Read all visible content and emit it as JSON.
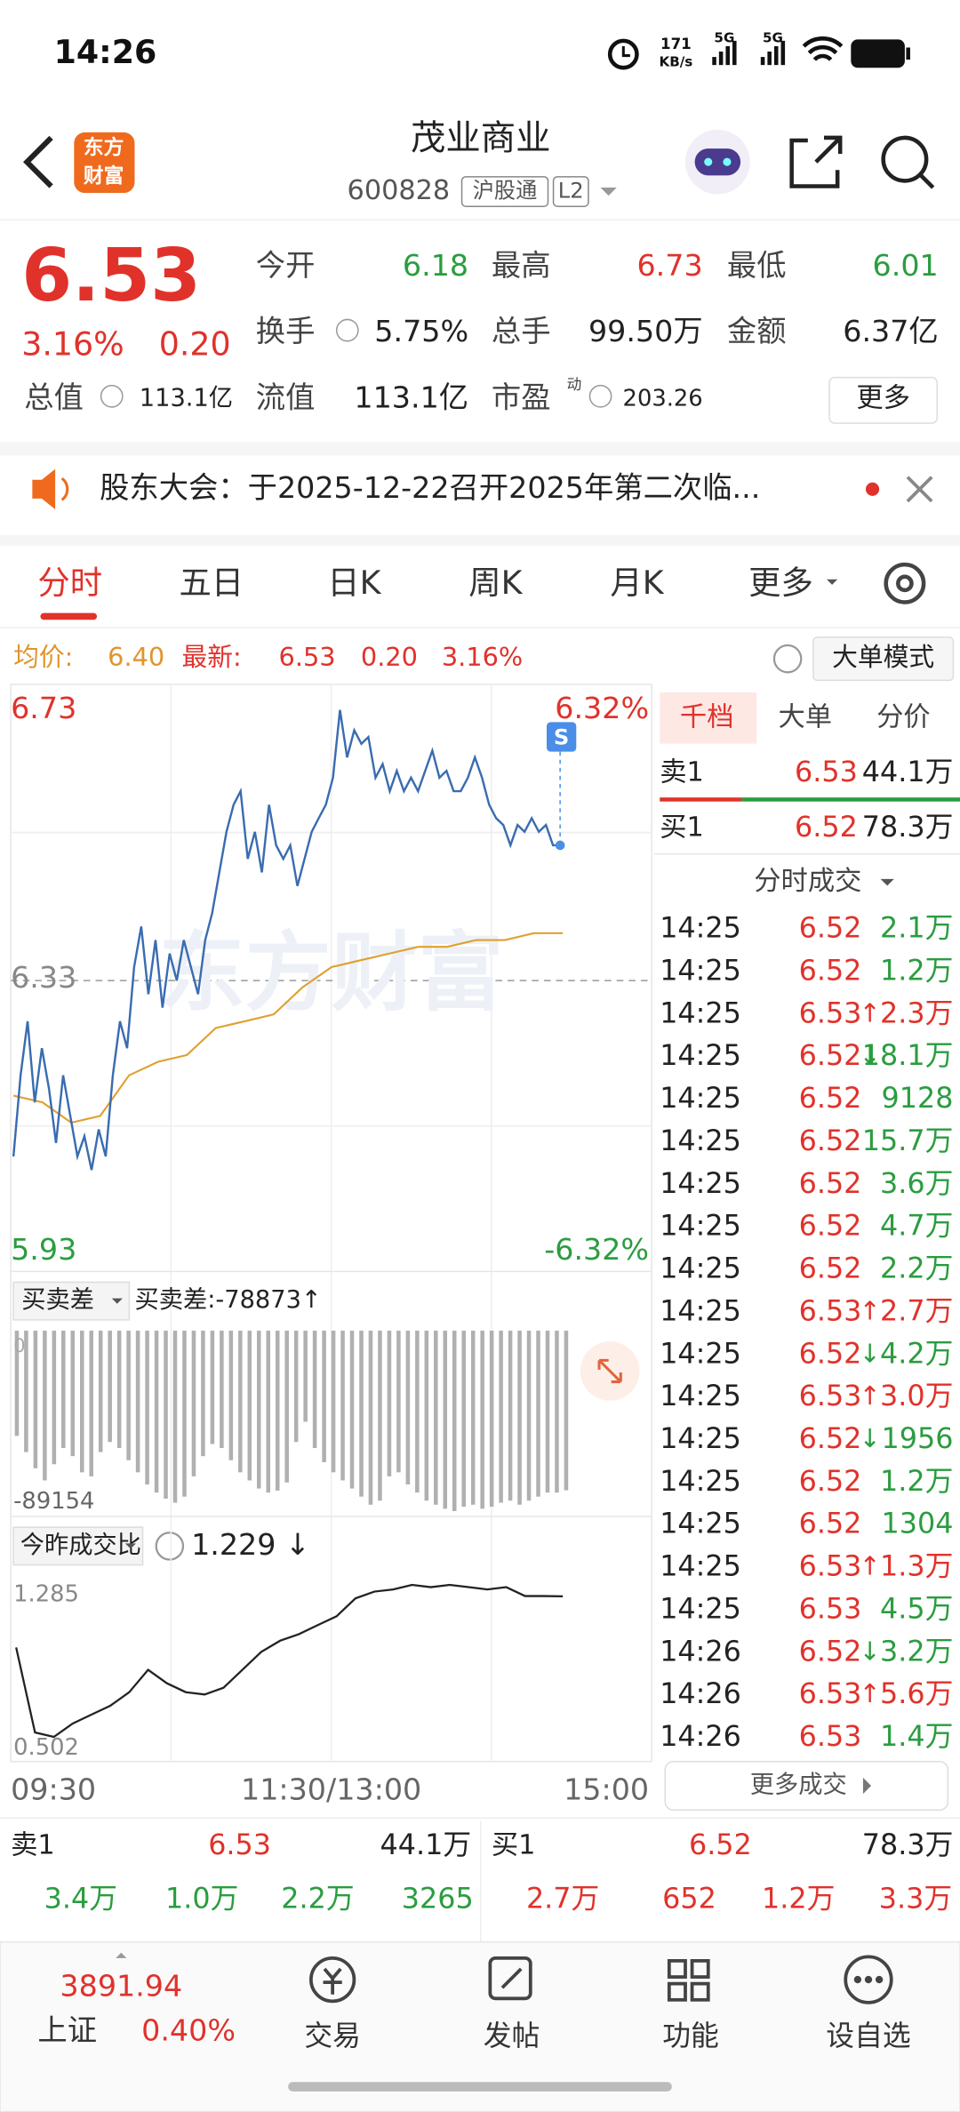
{
  "status_bar": {
    "time": "14:26",
    "speed": "171",
    "speed_unit": "KB/s",
    "net1": "5G",
    "net2": "5G"
  },
  "header": {
    "logo_top": "东方",
    "logo_bottom": "财富",
    "name": "茂业商业",
    "code": "600828",
    "tag1": "沪股通",
    "tag2": "L2"
  },
  "quote": {
    "price": "6.53",
    "change_pct": "3.16%",
    "change": "0.20",
    "row1": [
      {
        "label": "今开",
        "value": "6.18"
      },
      {
        "label": "最高",
        "value": "6.73"
      },
      {
        "label": "最低",
        "value": "6.01"
      }
    ],
    "row2": [
      {
        "label": "换手",
        "value": "5.75%"
      },
      {
        "label": "总手",
        "value": "99.50万"
      },
      {
        "label": "金额",
        "value": "6.37亿"
      }
    ],
    "row3": [
      {
        "label": "总值",
        "value": "113.1亿"
      },
      {
        "label": "流值",
        "value": "113.1亿"
      },
      {
        "label": "市盈",
        "value": "203.26"
      }
    ],
    "pe_sup": "动",
    "more": "更多"
  },
  "notice": {
    "text": "股东大会：于2025-12-22召开2025年第二次临..."
  },
  "tabs": [
    "分时",
    "五日",
    "日K",
    "周K",
    "月K",
    "更多"
  ],
  "summary": {
    "avg_label": "均价:",
    "avg": "6.40",
    "latest_label": "最新:",
    "latest": "6.53",
    "change": "0.20",
    "pct": "3.16%",
    "mode": "大单模式"
  },
  "price_chart": {
    "y_top": "6.73",
    "y_mid": "6.33",
    "y_bottom": "5.93",
    "pct_top": "6.32%",
    "pct_bottom": "-6.32%",
    "watermark": "东方财富",
    "marker": "S",
    "ylim": [
      5.93,
      6.73
    ],
    "price": [
      6.07,
      6.19,
      6.27,
      6.15,
      6.23,
      6.17,
      6.09,
      6.19,
      6.13,
      6.07,
      6.1,
      6.05,
      6.11,
      6.07,
      6.19,
      6.27,
      6.23,
      6.35,
      6.41,
      6.31,
      6.39,
      6.29,
      6.37,
      6.33,
      6.39,
      6.35,
      6.31,
      6.39,
      6.43,
      6.49,
      6.55,
      6.59,
      6.61,
      6.51,
      6.55,
      6.49,
      6.59,
      6.53,
      6.51,
      6.53,
      6.47,
      6.51,
      6.55,
      6.57,
      6.59,
      6.63,
      6.73,
      6.66,
      6.7,
      6.68,
      6.69,
      6.63,
      6.65,
      6.61,
      6.64,
      6.61,
      6.63,
      6.61,
      6.64,
      6.67,
      6.63,
      6.64,
      6.61,
      6.61,
      6.63,
      6.66,
      6.63,
      6.59,
      6.57,
      6.56,
      6.53,
      6.56,
      6.55,
      6.57,
      6.55,
      6.56,
      6.53,
      6.53
    ],
    "avg": [
      6.16,
      6.15,
      6.12,
      6.13,
      6.19,
      6.21,
      6.22,
      6.26,
      6.27,
      6.28,
      6.32,
      6.35,
      6.36,
      6.37,
      6.38,
      6.38,
      6.39,
      6.39,
      6.4,
      6.4
    ]
  },
  "diff_chart": {
    "selector": "买卖差",
    "label": "买卖差:-78873↑",
    "top": "0",
    "bottom": "-89154",
    "ylim": [
      -89154,
      0
    ],
    "values": [
      -52000,
      -60000,
      -68000,
      -74000,
      -66000,
      -58000,
      -62000,
      -70000,
      -72000,
      -60000,
      -55000,
      -58000,
      -64000,
      -70000,
      -76000,
      -80000,
      -83000,
      -85000,
      -82000,
      -72000,
      -62000,
      -56000,
      -58000,
      -64000,
      -70000,
      -74000,
      -78000,
      -80000,
      -79000,
      -75000,
      -55000,
      -45000,
      -58000,
      -65000,
      -70000,
      -74000,
      -78000,
      -82000,
      -86000,
      -84000,
      -72000,
      -70000,
      -76000,
      -80000,
      -84000,
      -86000,
      -88000,
      -89154,
      -87000,
      -86000,
      -88000,
      -87000,
      -85000,
      -84000,
      -86000,
      -84000,
      -82000,
      -80000,
      -80000,
      -78873
    ]
  },
  "ratio_chart": {
    "selector": "今昨成交比",
    "value": "1.229 ↓",
    "top": "1.285",
    "bottom": "0.502",
    "ylim": [
      0.502,
      1.285
    ],
    "values": [
      1.0,
      0.62,
      0.6,
      0.66,
      0.7,
      0.74,
      0.8,
      0.9,
      0.84,
      0.8,
      0.79,
      0.82,
      0.9,
      0.98,
      1.03,
      1.06,
      1.1,
      1.14,
      1.22,
      1.25,
      1.26,
      1.28,
      1.27,
      1.28,
      1.27,
      1.26,
      1.27,
      1.23,
      1.23,
      1.229
    ]
  },
  "time_axis": [
    "09:30",
    "11:30/13:00",
    "15:00"
  ],
  "book_tabs": [
    "千档",
    "大单",
    "分价"
  ],
  "level1": [
    {
      "side": "卖1",
      "price": "6.53",
      "vol": "44.1万"
    },
    {
      "side": "买1",
      "price": "6.52",
      "vol": "78.3万"
    }
  ],
  "trades_title": "分时成交",
  "trades": [
    {
      "time": "14:25",
      "price": "6.52",
      "vol": "2.1万"
    },
    {
      "time": "14:25",
      "price": "6.52",
      "vol": "1.2万"
    },
    {
      "time": "14:25",
      "price": "6.53",
      "arrow": "↑",
      "vol": "2.3万"
    },
    {
      "time": "14:25",
      "price": "6.52",
      "arrow": "↓",
      "vol": "18.1万"
    },
    {
      "time": "14:25",
      "price": "6.52",
      "vol": "9128"
    },
    {
      "time": "14:25",
      "price": "6.52",
      "vol": "15.7万"
    },
    {
      "time": "14:25",
      "price": "6.52",
      "vol": "3.6万"
    },
    {
      "time": "14:25",
      "price": "6.52",
      "vol": "4.7万"
    },
    {
      "time": "14:25",
      "price": "6.52",
      "vol": "2.2万"
    },
    {
      "time": "14:25",
      "price": "6.53",
      "arrow": "↑",
      "vol": "2.7万"
    },
    {
      "time": "14:25",
      "price": "6.52",
      "arrow": "↓",
      "vol": "4.2万"
    },
    {
      "time": "14:25",
      "price": "6.53",
      "arrow": "↑",
      "vol": "3.0万"
    },
    {
      "time": "14:25",
      "price": "6.52",
      "arrow": "↓",
      "vol": "1956"
    },
    {
      "time": "14:25",
      "price": "6.52",
      "vol": "1.2万"
    },
    {
      "time": "14:25",
      "price": "6.52",
      "vol": "1304"
    },
    {
      "time": "14:25",
      "price": "6.53",
      "arrow": "↑",
      "vol": "1.3万"
    },
    {
      "time": "14:25",
      "price": "6.53",
      "vol": "4.5万"
    },
    {
      "time": "14:26",
      "price": "6.52",
      "arrow": "↓",
      "vol": "3.2万"
    },
    {
      "time": "14:26",
      "price": "6.53",
      "arrow": "↑",
      "vol": "5.6万"
    },
    {
      "time": "14:26",
      "price": "6.53",
      "vol": "1.4万"
    }
  ],
  "more_trades": "更多成交",
  "bottom_book": {
    "sell": {
      "side": "卖1",
      "price": "6.53",
      "vol": "44.1万"
    },
    "buy": {
      "side": "买1",
      "price": "6.52",
      "vol": "78.3万"
    },
    "sell_levels": [
      "3.4万",
      "1.0万",
      "2.2万",
      "3265"
    ],
    "buy_levels": [
      "2.7万",
      "652",
      "1.2万",
      "3.3万"
    ]
  },
  "nav": {
    "index_value": "3891.94",
    "index_name": "上证",
    "index_pct": "0.40%",
    "items": [
      "交易",
      "发帖",
      "功能",
      "设自选"
    ]
  }
}
